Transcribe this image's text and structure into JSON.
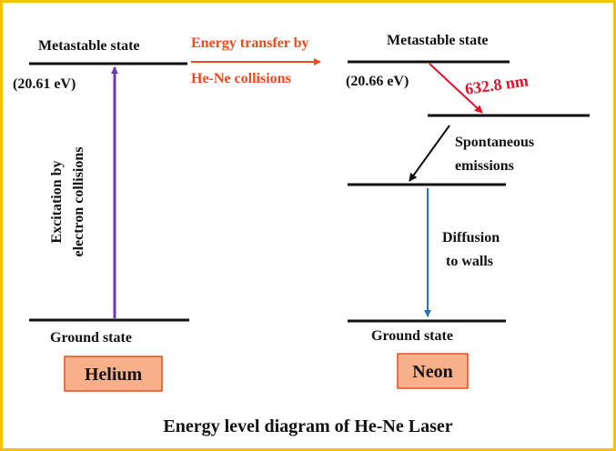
{
  "helium": {
    "metastable_label": "Metastable state",
    "metastable_energy": "(20.61 eV)",
    "excitation_line1": "Excitation by",
    "excitation_line2": "electron collisions",
    "ground_label": "Ground state",
    "atom_label": "Helium"
  },
  "transfer": {
    "line1": "Energy transfer by",
    "line2": "He-Ne collisions"
  },
  "neon": {
    "metastable_label": "Metastable state",
    "metastable_energy": "(20.66 eV)",
    "laser_wavelength": "632.8 nm",
    "spontaneous_line1": "Spontaneous",
    "spontaneous_line2": "emissions",
    "diffusion_line1": "Diffusion",
    "diffusion_line2": "to walls",
    "ground_label": "Ground state",
    "atom_label": "Neon"
  },
  "caption": "Energy level diagram of He-Ne Laser",
  "colors": {
    "border": "#f5c400",
    "excitation_arrow": "#6a3cb0",
    "transfer": "#f04a1c",
    "laser_arrow": "#e4102a",
    "diffusion_arrow": "#2a6fc0",
    "label_box_fill": "#f7b08a",
    "label_box_stroke": "#e05020"
  }
}
